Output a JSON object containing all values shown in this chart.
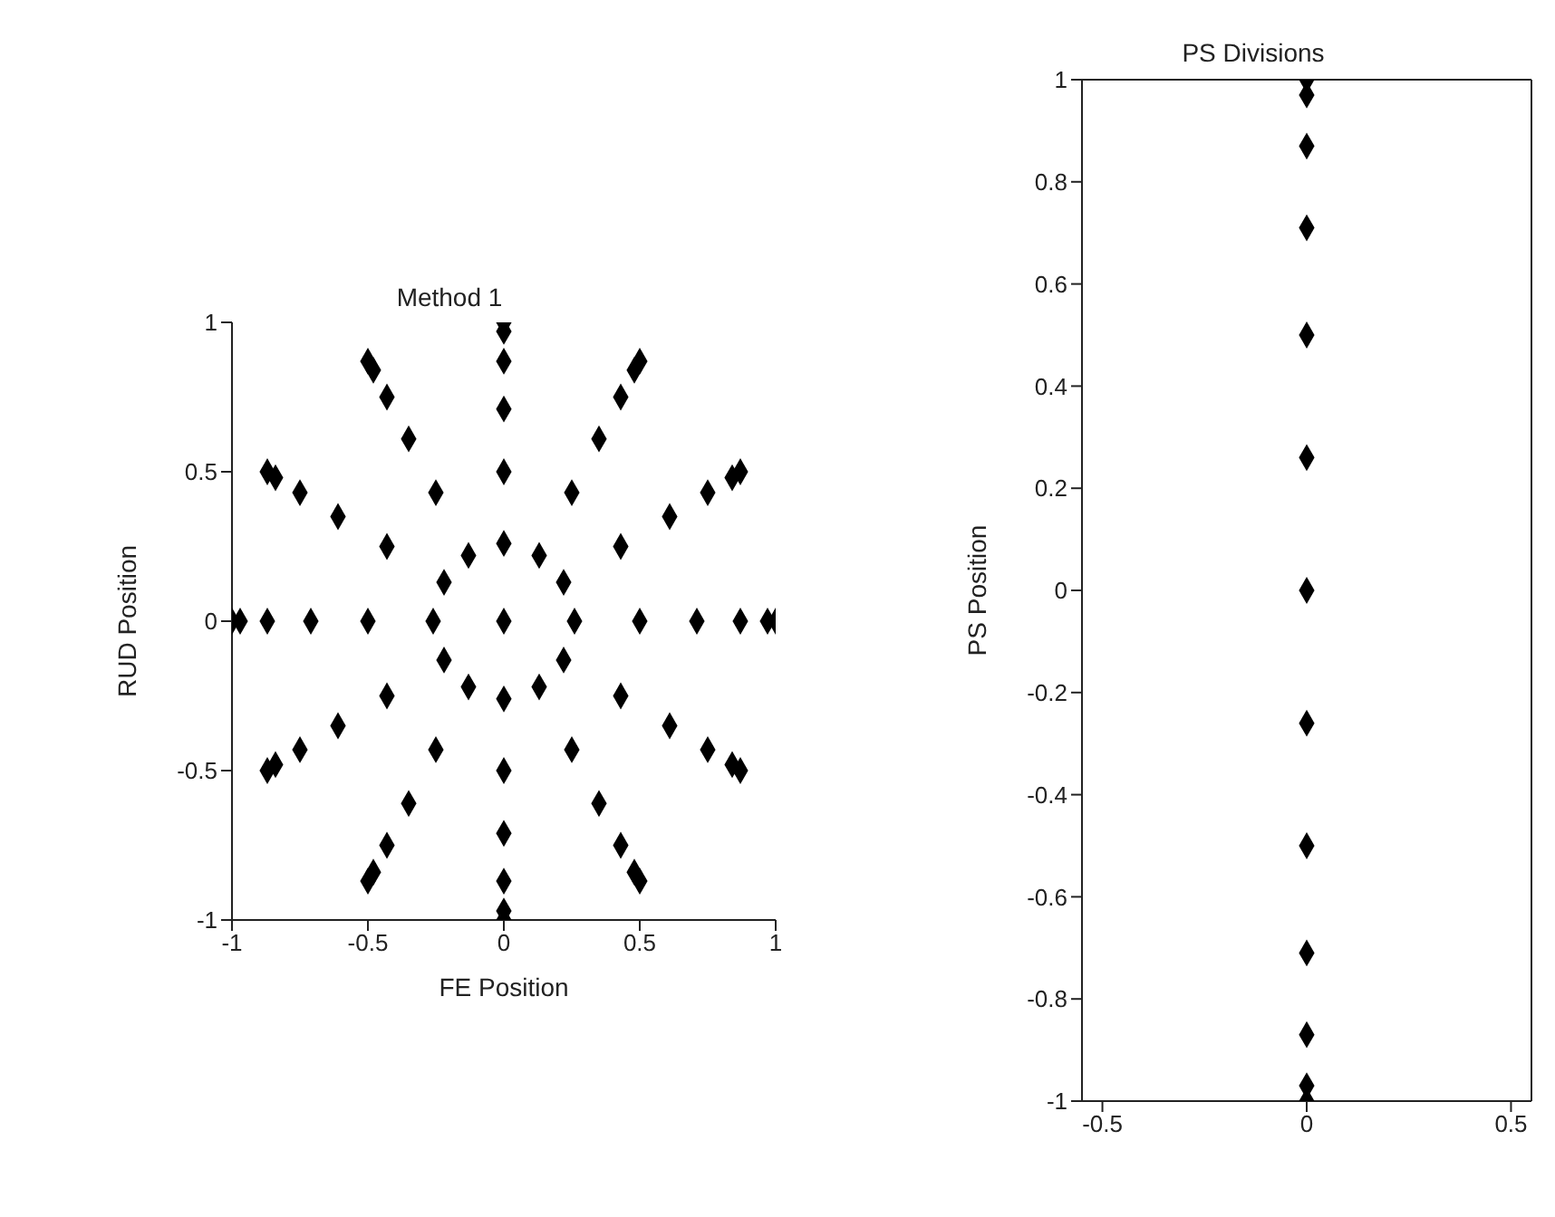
{
  "chart_data": [
    {
      "type": "scatter",
      "title": "Method 1",
      "xlabel": "FE Position",
      "ylabel": "RUD Position",
      "marker": "diamond",
      "color": "#000000",
      "x": [
        0,
        0.26,
        0.5,
        0.71,
        0.87,
        0.97,
        1,
        0.22,
        0.43,
        0.61,
        0.75,
        0.84,
        0.87,
        0.13,
        0.25,
        0.35,
        0.43,
        0.48,
        0.5,
        0,
        0,
        0,
        0,
        0,
        0,
        -0.13,
        -0.25,
        -0.35,
        -0.43,
        -0.48,
        -0.5,
        -0.22,
        -0.43,
        -0.61,
        -0.75,
        -0.84,
        -0.87,
        -0.26,
        -0.5,
        -0.71,
        -0.87,
        -0.97,
        -1,
        -0.22,
        -0.43,
        -0.61,
        -0.75,
        -0.84,
        -0.87,
        -0.13,
        -0.25,
        -0.35,
        -0.43,
        -0.48,
        -0.5,
        0,
        0,
        0,
        0,
        0,
        0,
        0.13,
        0.25,
        0.35,
        0.43,
        0.48,
        0.5,
        0.22,
        0.43,
        0.61,
        0.75,
        0.84,
        0.87
      ],
      "values": [
        0,
        0,
        0,
        0,
        0,
        0,
        0,
        0.13,
        0.25,
        0.35,
        0.43,
        0.48,
        0.5,
        0.22,
        0.43,
        0.61,
        0.75,
        0.84,
        0.87,
        0.26,
        0.5,
        0.71,
        0.87,
        0.97,
        1,
        0.22,
        0.43,
        0.61,
        0.75,
        0.84,
        0.87,
        0.13,
        0.25,
        0.35,
        0.43,
        0.48,
        0.5,
        0,
        0,
        0,
        0,
        0,
        0,
        -0.13,
        -0.25,
        -0.35,
        -0.43,
        -0.48,
        -0.5,
        -0.22,
        -0.43,
        -0.61,
        -0.75,
        -0.84,
        -0.87,
        -0.26,
        -0.5,
        -0.71,
        -0.87,
        -0.97,
        -1,
        -0.22,
        -0.43,
        -0.61,
        -0.75,
        -0.84,
        -0.87,
        -0.13,
        -0.25,
        -0.35,
        -0.43,
        -0.48,
        -0.5
      ],
      "xlim": [
        -1,
        1
      ],
      "xticks": [
        -1,
        -0.5,
        0,
        0.5,
        1
      ],
      "ylim": [
        -1,
        1
      ],
      "yticks": [
        -1,
        -0.5,
        0,
        0.5,
        1
      ]
    },
    {
      "type": "scatter",
      "title": "PS Divisions",
      "ylabel": "PS Position",
      "marker": "diamond",
      "color": "#000000",
      "x": [
        0,
        0,
        0,
        0,
        0,
        0,
        0,
        0,
        0,
        0,
        0,
        0,
        0
      ],
      "values": [
        1,
        0.97,
        0.87,
        0.71,
        0.5,
        0.26,
        0,
        -0.26,
        -0.5,
        -0.71,
        -0.87,
        -0.97,
        -1
      ],
      "xlim": [
        -0.55,
        0.55
      ],
      "xticks": [
        -0.5,
        0,
        0.5
      ],
      "ylim": [
        -1,
        1
      ],
      "yticks": [
        -1,
        -0.8,
        -0.6,
        -0.4,
        -0.2,
        0,
        0.2,
        0.4,
        0.6,
        0.8,
        1
      ]
    }
  ]
}
